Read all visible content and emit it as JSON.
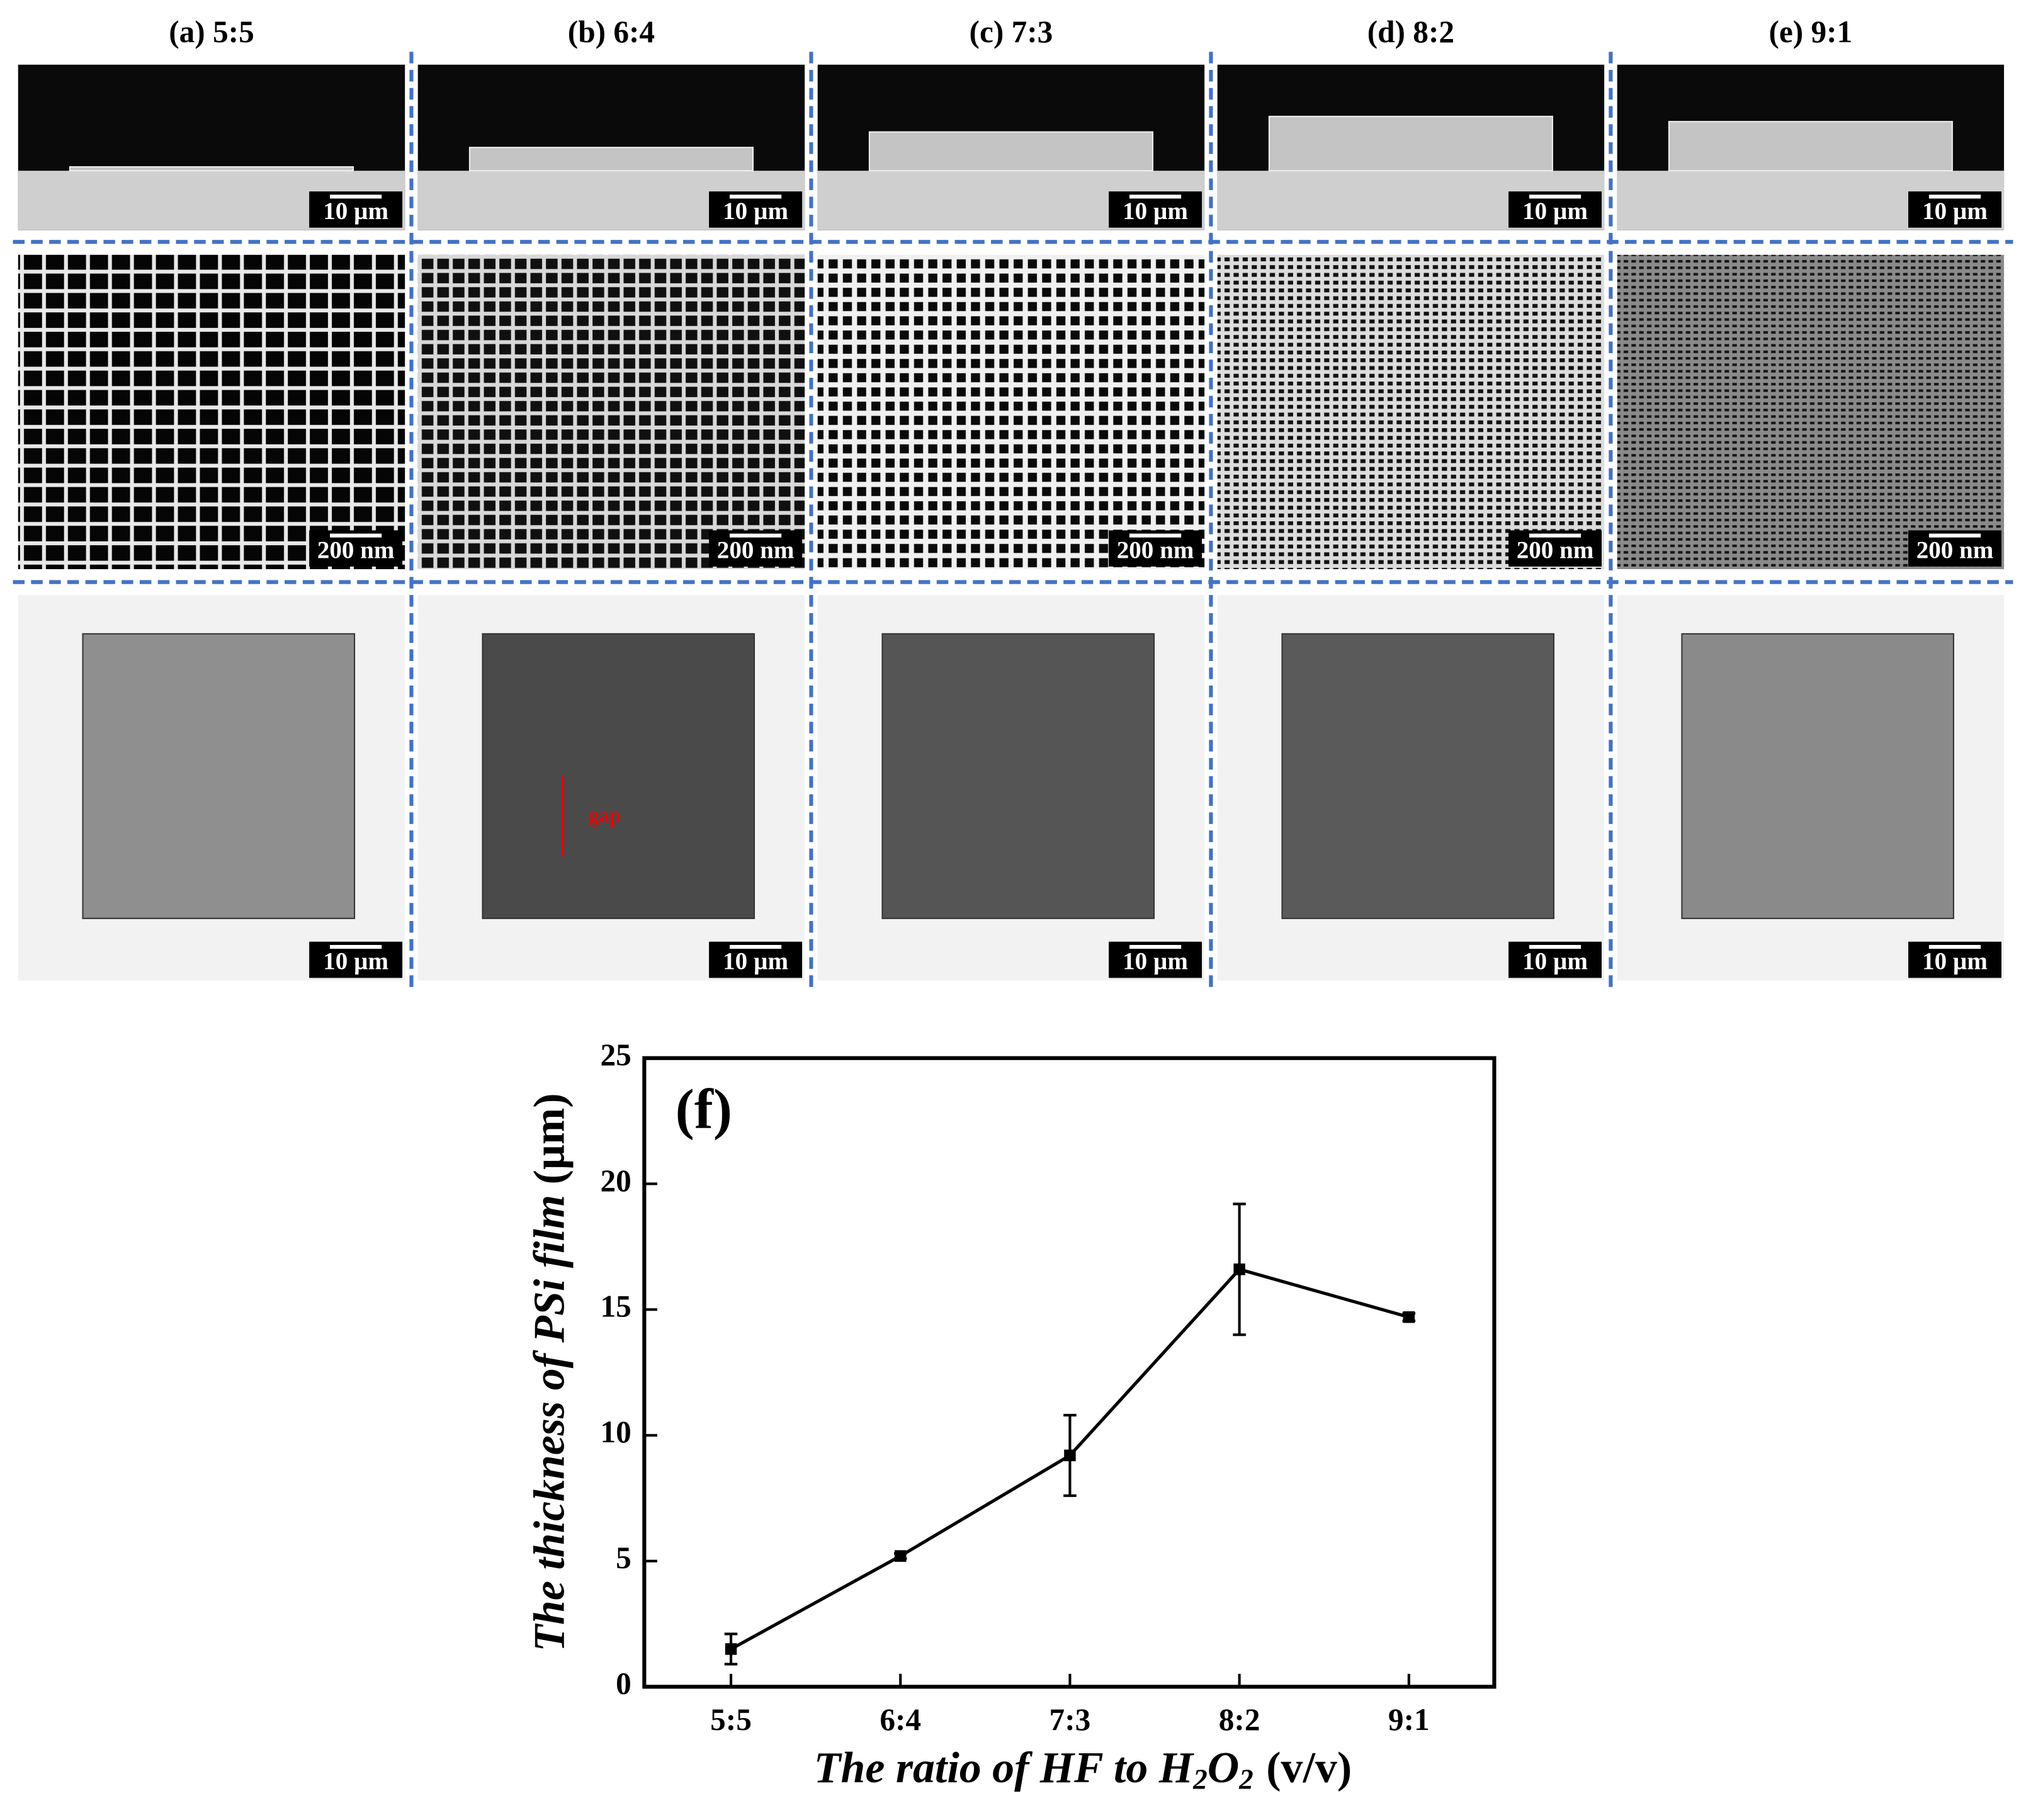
{
  "panels": [
    {
      "title": "(a) 5:5",
      "scale_bars": [
        "10 µm",
        "200 nm",
        "10 µm"
      ]
    },
    {
      "title": "(b) 6:4",
      "scale_bars": [
        "10 µm",
        "200 nm",
        "10 µm"
      ],
      "annotation": "gap"
    },
    {
      "title": "(c) 7:3",
      "scale_bars": [
        "10 µm",
        "200 nm",
        "10 µm"
      ]
    },
    {
      "title": "(d) 8:2",
      "scale_bars": [
        "10 µm",
        "200 nm",
        "10 µm"
      ]
    },
    {
      "title": "(e) 9:1",
      "scale_bars": [
        "10 µm",
        "200 nm",
        "10 µm"
      ]
    }
  ],
  "chart_data": {
    "type": "line",
    "panel_label": "(f)",
    "categories": [
      "5:5",
      "6:4",
      "7:3",
      "8:2",
      "9:1"
    ],
    "values": [
      1.5,
      5.2,
      9.2,
      16.6,
      14.7
    ],
    "errors": [
      0.6,
      0.1,
      1.6,
      2.6,
      0.15
    ],
    "color": "#000000",
    "ylim": [
      0,
      25
    ],
    "yticks": [
      0,
      5,
      10,
      15,
      20,
      25
    ],
    "x_label": [
      "The ratio of HF to H",
      "2",
      "O",
      "2",
      "(v/v)"
    ],
    "y_label": [
      "The thickness of PSi film",
      "(µm)"
    ]
  }
}
